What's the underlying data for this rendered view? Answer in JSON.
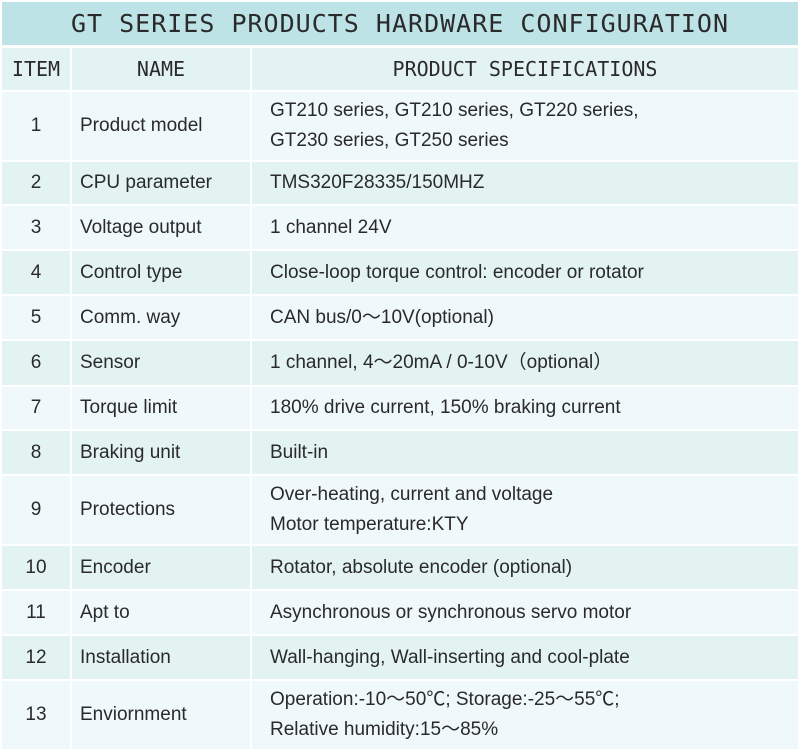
{
  "title": "GT SERIES PRODUCTS HARDWARE CONFIGURATION",
  "headers": {
    "item": "ITEM",
    "name": "NAME",
    "spec": "PRODUCT SPECIFICATIONS"
  },
  "rows": [
    {
      "item": "1",
      "name": "Product model",
      "spec": [
        "GT210 series, GT210 series, GT220 series,",
        "GT230 series, GT250 series"
      ]
    },
    {
      "item": "2",
      "name": "CPU parameter",
      "spec": [
        "TMS320F28335/150MHZ"
      ]
    },
    {
      "item": "3",
      "name": "Voltage output",
      "spec": [
        "1 channel 24V"
      ]
    },
    {
      "item": "4",
      "name": "Control type",
      "spec": [
        "Close-loop torque control: encoder or rotator"
      ]
    },
    {
      "item": "5",
      "name": "Comm. way",
      "spec": [
        "CAN bus/0～10V(optional)"
      ]
    },
    {
      "item": "6",
      "name": "Sensor",
      "spec": [
        "1 channel, 4～20mA / 0-10V（optional）"
      ]
    },
    {
      "item": "7",
      "name": "Torque limit",
      "spec": [
        "180% drive current, 150% braking current"
      ]
    },
    {
      "item": "8",
      "name": "Braking unit",
      "spec": [
        "Built-in"
      ]
    },
    {
      "item": "9",
      "name": "Protections",
      "spec": [
        "Over-heating, current and voltage",
        "Motor temperature:KTY"
      ]
    },
    {
      "item": "10",
      "name": "Encoder",
      "spec": [
        "Rotator, absolute encoder (optional)"
      ]
    },
    {
      "item": "11",
      "name": "Apt to",
      "spec": [
        "Asynchronous or synchronous servo motor"
      ]
    },
    {
      "item": "12",
      "name": "Installation",
      "spec": [
        "Wall-hanging, Wall-inserting and cool-plate"
      ]
    },
    {
      "item": "13",
      "name": "Enviornment",
      "spec": [
        "Operation:-10～50℃; Storage:-25～55℃;",
        "Relative humidity:15～85%"
      ]
    }
  ]
}
